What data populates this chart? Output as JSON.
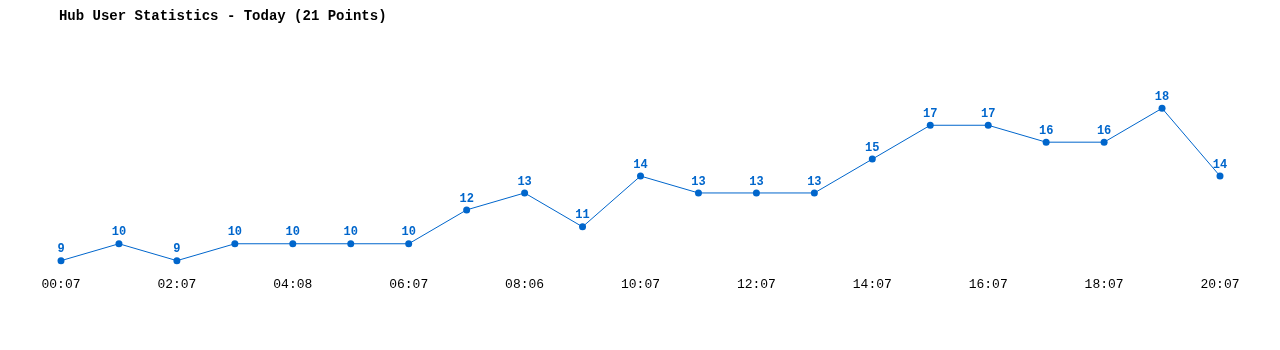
{
  "chart_data": {
    "type": "line",
    "title": "Hub User Statistics - Today (21 Points)",
    "categories": [
      "00:07",
      null,
      "02:07",
      null,
      "04:08",
      null,
      "06:07",
      null,
      "08:06",
      null,
      "10:07",
      null,
      "12:07",
      null,
      "14:07",
      null,
      "16:07",
      null,
      "18:07",
      null,
      "20:07"
    ],
    "series": [
      {
        "color": "#0066cc",
        "values": [
          9,
          10,
          9,
          10,
          10,
          10,
          10,
          12,
          13,
          11,
          14,
          13,
          13,
          13,
          15,
          17,
          17,
          16,
          16,
          18,
          14
        ]
      }
    ],
    "data_labels": true,
    "grid": false,
    "marker": "circle",
    "line_style": "solid",
    "tick_labels": "x"
  }
}
